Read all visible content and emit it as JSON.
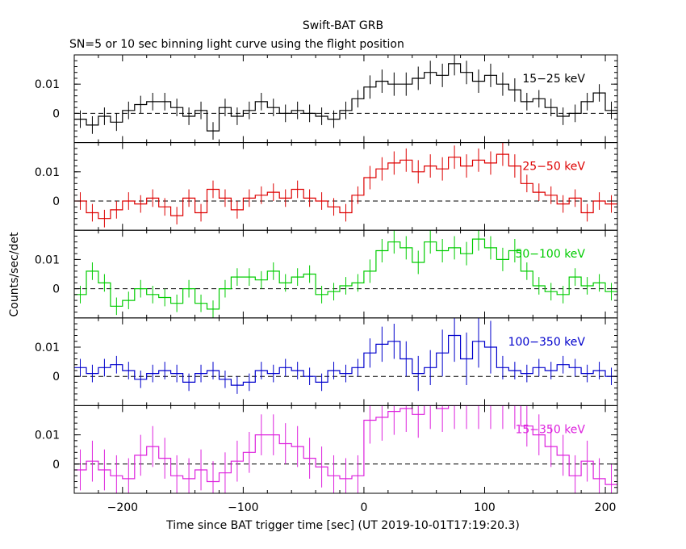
{
  "title": "Swift-BAT GRB",
  "subtitle": "SN=5 or 10 sec binning light curve using the flight position",
  "chart_data": {
    "type": "line",
    "xlabel": "Time since BAT trigger time [sec] (UT 2019-10-01T17:19:20.3)",
    "ylabel": "Counts/sec/det",
    "xlim": [
      -240,
      210
    ],
    "x_ticks": [
      -200,
      -100,
      0,
      100,
      200
    ],
    "x_tick_labels": [
      "−200",
      "−100",
      "0",
      "100",
      "200"
    ],
    "y_ticks": [
      0,
      0.01
    ],
    "y_tick_labels": [
      "0",
      "0.01"
    ],
    "grid": false,
    "panels": [
      {
        "name": "15−25 keV",
        "color": "#000000",
        "ylim": [
          -0.01,
          0.02
        ],
        "x": [
          -240,
          -230,
          -220,
          -210,
          -200,
          -190,
          -180,
          -170,
          -160,
          -150,
          -140,
          -130,
          -120,
          -110,
          -100,
          -90,
          -80,
          -70,
          -60,
          -50,
          -40,
          -30,
          -20,
          -10,
          0,
          10,
          20,
          30,
          40,
          50,
          60,
          70,
          80,
          90,
          100,
          110,
          120,
          130,
          140,
          150,
          160,
          170,
          180,
          190,
          200
        ],
        "values": [
          -0.002,
          -0.004,
          -0.001,
          -0.003,
          0.001,
          0.003,
          0.004,
          0.004,
          0.002,
          -0.001,
          0.001,
          -0.006,
          0.002,
          -0.001,
          0.001,
          0.004,
          0.002,
          0.0,
          0.001,
          0.0,
          -0.001,
          -0.002,
          0.001,
          0.005,
          0.009,
          0.011,
          0.01,
          0.01,
          0.012,
          0.014,
          0.013,
          0.017,
          0.014,
          0.011,
          0.013,
          0.01,
          0.008,
          0.004,
          0.005,
          0.002,
          -0.001,
          0.0,
          0.004,
          0.007,
          0.001
        ],
        "errors": [
          0.003,
          0.003,
          0.003,
          0.003,
          0.003,
          0.003,
          0.003,
          0.003,
          0.003,
          0.003,
          0.003,
          0.003,
          0.003,
          0.003,
          0.003,
          0.003,
          0.003,
          0.003,
          0.003,
          0.003,
          0.003,
          0.003,
          0.003,
          0.003,
          0.004,
          0.004,
          0.004,
          0.004,
          0.004,
          0.004,
          0.004,
          0.004,
          0.004,
          0.004,
          0.004,
          0.004,
          0.004,
          0.003,
          0.003,
          0.003,
          0.003,
          0.003,
          0.003,
          0.003,
          0.003
        ]
      },
      {
        "name": "25−50 keV",
        "color": "#dd0000",
        "ylim": [
          -0.01,
          0.02
        ],
        "x": [
          -240,
          -230,
          -220,
          -210,
          -200,
          -190,
          -180,
          -170,
          -160,
          -150,
          -140,
          -130,
          -120,
          -110,
          -100,
          -90,
          -80,
          -70,
          -60,
          -50,
          -40,
          -30,
          -20,
          -10,
          0,
          10,
          20,
          30,
          40,
          50,
          60,
          70,
          80,
          90,
          100,
          110,
          120,
          130,
          140,
          150,
          160,
          170,
          180,
          190,
          200
        ],
        "values": [
          0.0,
          -0.004,
          -0.006,
          -0.003,
          0.0,
          -0.001,
          0.001,
          -0.002,
          -0.005,
          0.001,
          -0.004,
          0.004,
          0.001,
          -0.003,
          0.001,
          0.002,
          0.003,
          0.001,
          0.004,
          0.001,
          0.0,
          -0.002,
          -0.004,
          0.002,
          0.008,
          0.011,
          0.013,
          0.014,
          0.01,
          0.012,
          0.011,
          0.015,
          0.012,
          0.014,
          0.013,
          0.016,
          0.012,
          0.006,
          0.003,
          0.002,
          -0.001,
          0.001,
          -0.004,
          0.0,
          -0.001
        ],
        "errors": [
          0.003,
          0.003,
          0.003,
          0.003,
          0.003,
          0.003,
          0.003,
          0.003,
          0.003,
          0.003,
          0.003,
          0.003,
          0.003,
          0.003,
          0.003,
          0.003,
          0.003,
          0.003,
          0.003,
          0.003,
          0.003,
          0.003,
          0.003,
          0.003,
          0.004,
          0.004,
          0.004,
          0.004,
          0.004,
          0.004,
          0.004,
          0.004,
          0.004,
          0.004,
          0.004,
          0.004,
          0.004,
          0.003,
          0.003,
          0.003,
          0.003,
          0.003,
          0.003,
          0.003,
          0.003
        ]
      },
      {
        "name": "50−100 keV",
        "color": "#00cc00",
        "ylim": [
          -0.01,
          0.02
        ],
        "x": [
          -240,
          -230,
          -220,
          -210,
          -200,
          -190,
          -180,
          -170,
          -160,
          -150,
          -140,
          -130,
          -120,
          -110,
          -100,
          -90,
          -80,
          -70,
          -60,
          -50,
          -40,
          -30,
          -20,
          -10,
          0,
          10,
          20,
          30,
          40,
          50,
          60,
          70,
          80,
          90,
          100,
          110,
          120,
          130,
          140,
          150,
          160,
          170,
          180,
          190,
          200
        ],
        "values": [
          -0.002,
          0.006,
          0.002,
          -0.006,
          -0.004,
          0.0,
          -0.002,
          -0.003,
          -0.005,
          0.0,
          -0.005,
          -0.007,
          0.0,
          0.004,
          0.004,
          0.003,
          0.006,
          0.002,
          0.004,
          0.005,
          -0.002,
          -0.001,
          0.001,
          0.002,
          0.006,
          0.013,
          0.016,
          0.014,
          0.009,
          0.016,
          0.013,
          0.014,
          0.012,
          0.017,
          0.014,
          0.01,
          0.013,
          0.006,
          0.001,
          -0.001,
          -0.002,
          0.004,
          0.001,
          0.002,
          -0.001
        ],
        "errors": [
          0.003,
          0.003,
          0.003,
          0.003,
          0.003,
          0.003,
          0.003,
          0.003,
          0.003,
          0.003,
          0.003,
          0.003,
          0.003,
          0.003,
          0.003,
          0.003,
          0.003,
          0.003,
          0.003,
          0.003,
          0.003,
          0.003,
          0.003,
          0.003,
          0.004,
          0.004,
          0.004,
          0.004,
          0.004,
          0.004,
          0.004,
          0.004,
          0.004,
          0.004,
          0.004,
          0.004,
          0.004,
          0.003,
          0.003,
          0.003,
          0.003,
          0.003,
          0.003,
          0.003,
          0.003
        ]
      },
      {
        "name": "100−350 keV",
        "color": "#0000cc",
        "ylim": [
          -0.01,
          0.02
        ],
        "x": [
          -240,
          -230,
          -220,
          -210,
          -200,
          -190,
          -180,
          -170,
          -160,
          -150,
          -140,
          -130,
          -120,
          -110,
          -100,
          -90,
          -80,
          -70,
          -60,
          -50,
          -40,
          -30,
          -20,
          -10,
          0,
          10,
          20,
          30,
          40,
          50,
          60,
          70,
          80,
          90,
          100,
          110,
          120,
          130,
          140,
          150,
          160,
          170,
          180,
          190,
          200
        ],
        "values": [
          0.003,
          0.001,
          0.003,
          0.004,
          0.002,
          -0.001,
          0.001,
          0.002,
          0.001,
          -0.002,
          0.001,
          0.002,
          -0.001,
          -0.003,
          -0.002,
          0.002,
          0.001,
          0.003,
          0.002,
          0.0,
          -0.002,
          0.002,
          0.001,
          0.003,
          0.008,
          0.011,
          0.012,
          0.006,
          0.001,
          0.003,
          0.008,
          0.014,
          0.006,
          0.012,
          0.01,
          0.003,
          0.002,
          0.001,
          0.003,
          0.002,
          0.004,
          0.003,
          0.001,
          0.002,
          0.0
        ],
        "errors": [
          0.003,
          0.003,
          0.003,
          0.003,
          0.003,
          0.003,
          0.003,
          0.003,
          0.003,
          0.003,
          0.003,
          0.003,
          0.003,
          0.003,
          0.003,
          0.003,
          0.003,
          0.003,
          0.003,
          0.003,
          0.003,
          0.003,
          0.003,
          0.003,
          0.005,
          0.006,
          0.006,
          0.006,
          0.006,
          0.006,
          0.008,
          0.009,
          0.009,
          0.009,
          0.009,
          0.004,
          0.003,
          0.003,
          0.003,
          0.003,
          0.003,
          0.003,
          0.003,
          0.003,
          0.003
        ]
      },
      {
        "name": "15−350 keV",
        "color": "#dd22dd",
        "ylim": [
          -0.01,
          0.02
        ],
        "x": [
          -240,
          -230,
          -220,
          -210,
          -200,
          -190,
          -180,
          -170,
          -160,
          -150,
          -140,
          -130,
          -120,
          -110,
          -100,
          -90,
          -80,
          -70,
          -60,
          -50,
          -40,
          -30,
          -20,
          -10,
          0,
          10,
          20,
          30,
          40,
          50,
          60,
          70,
          80,
          90,
          100,
          110,
          120,
          130,
          140,
          150,
          160,
          170,
          180,
          190,
          200
        ],
        "values": [
          -0.002,
          0.001,
          -0.002,
          -0.004,
          -0.005,
          0.003,
          0.006,
          0.002,
          -0.004,
          -0.005,
          -0.002,
          -0.006,
          -0.003,
          0.001,
          0.004,
          0.01,
          0.01,
          0.007,
          0.006,
          0.002,
          -0.001,
          -0.004,
          -0.005,
          -0.004,
          0.015,
          0.016,
          0.018,
          0.019,
          0.017,
          0.02,
          0.019,
          0.02,
          0.02,
          0.02,
          0.02,
          0.02,
          0.02,
          0.013,
          0.01,
          0.006,
          0.003,
          -0.004,
          0.001,
          -0.005,
          -0.007
        ],
        "errors": [
          0.007,
          0.007,
          0.007,
          0.007,
          0.007,
          0.007,
          0.007,
          0.007,
          0.007,
          0.007,
          0.007,
          0.007,
          0.007,
          0.007,
          0.007,
          0.007,
          0.007,
          0.007,
          0.007,
          0.007,
          0.007,
          0.007,
          0.007,
          0.007,
          0.008,
          0.008,
          0.008,
          0.008,
          0.008,
          0.008,
          0.008,
          0.008,
          0.008,
          0.008,
          0.008,
          0.008,
          0.008,
          0.007,
          0.007,
          0.007,
          0.007,
          0.007,
          0.007,
          0.007,
          0.007
        ]
      }
    ]
  }
}
